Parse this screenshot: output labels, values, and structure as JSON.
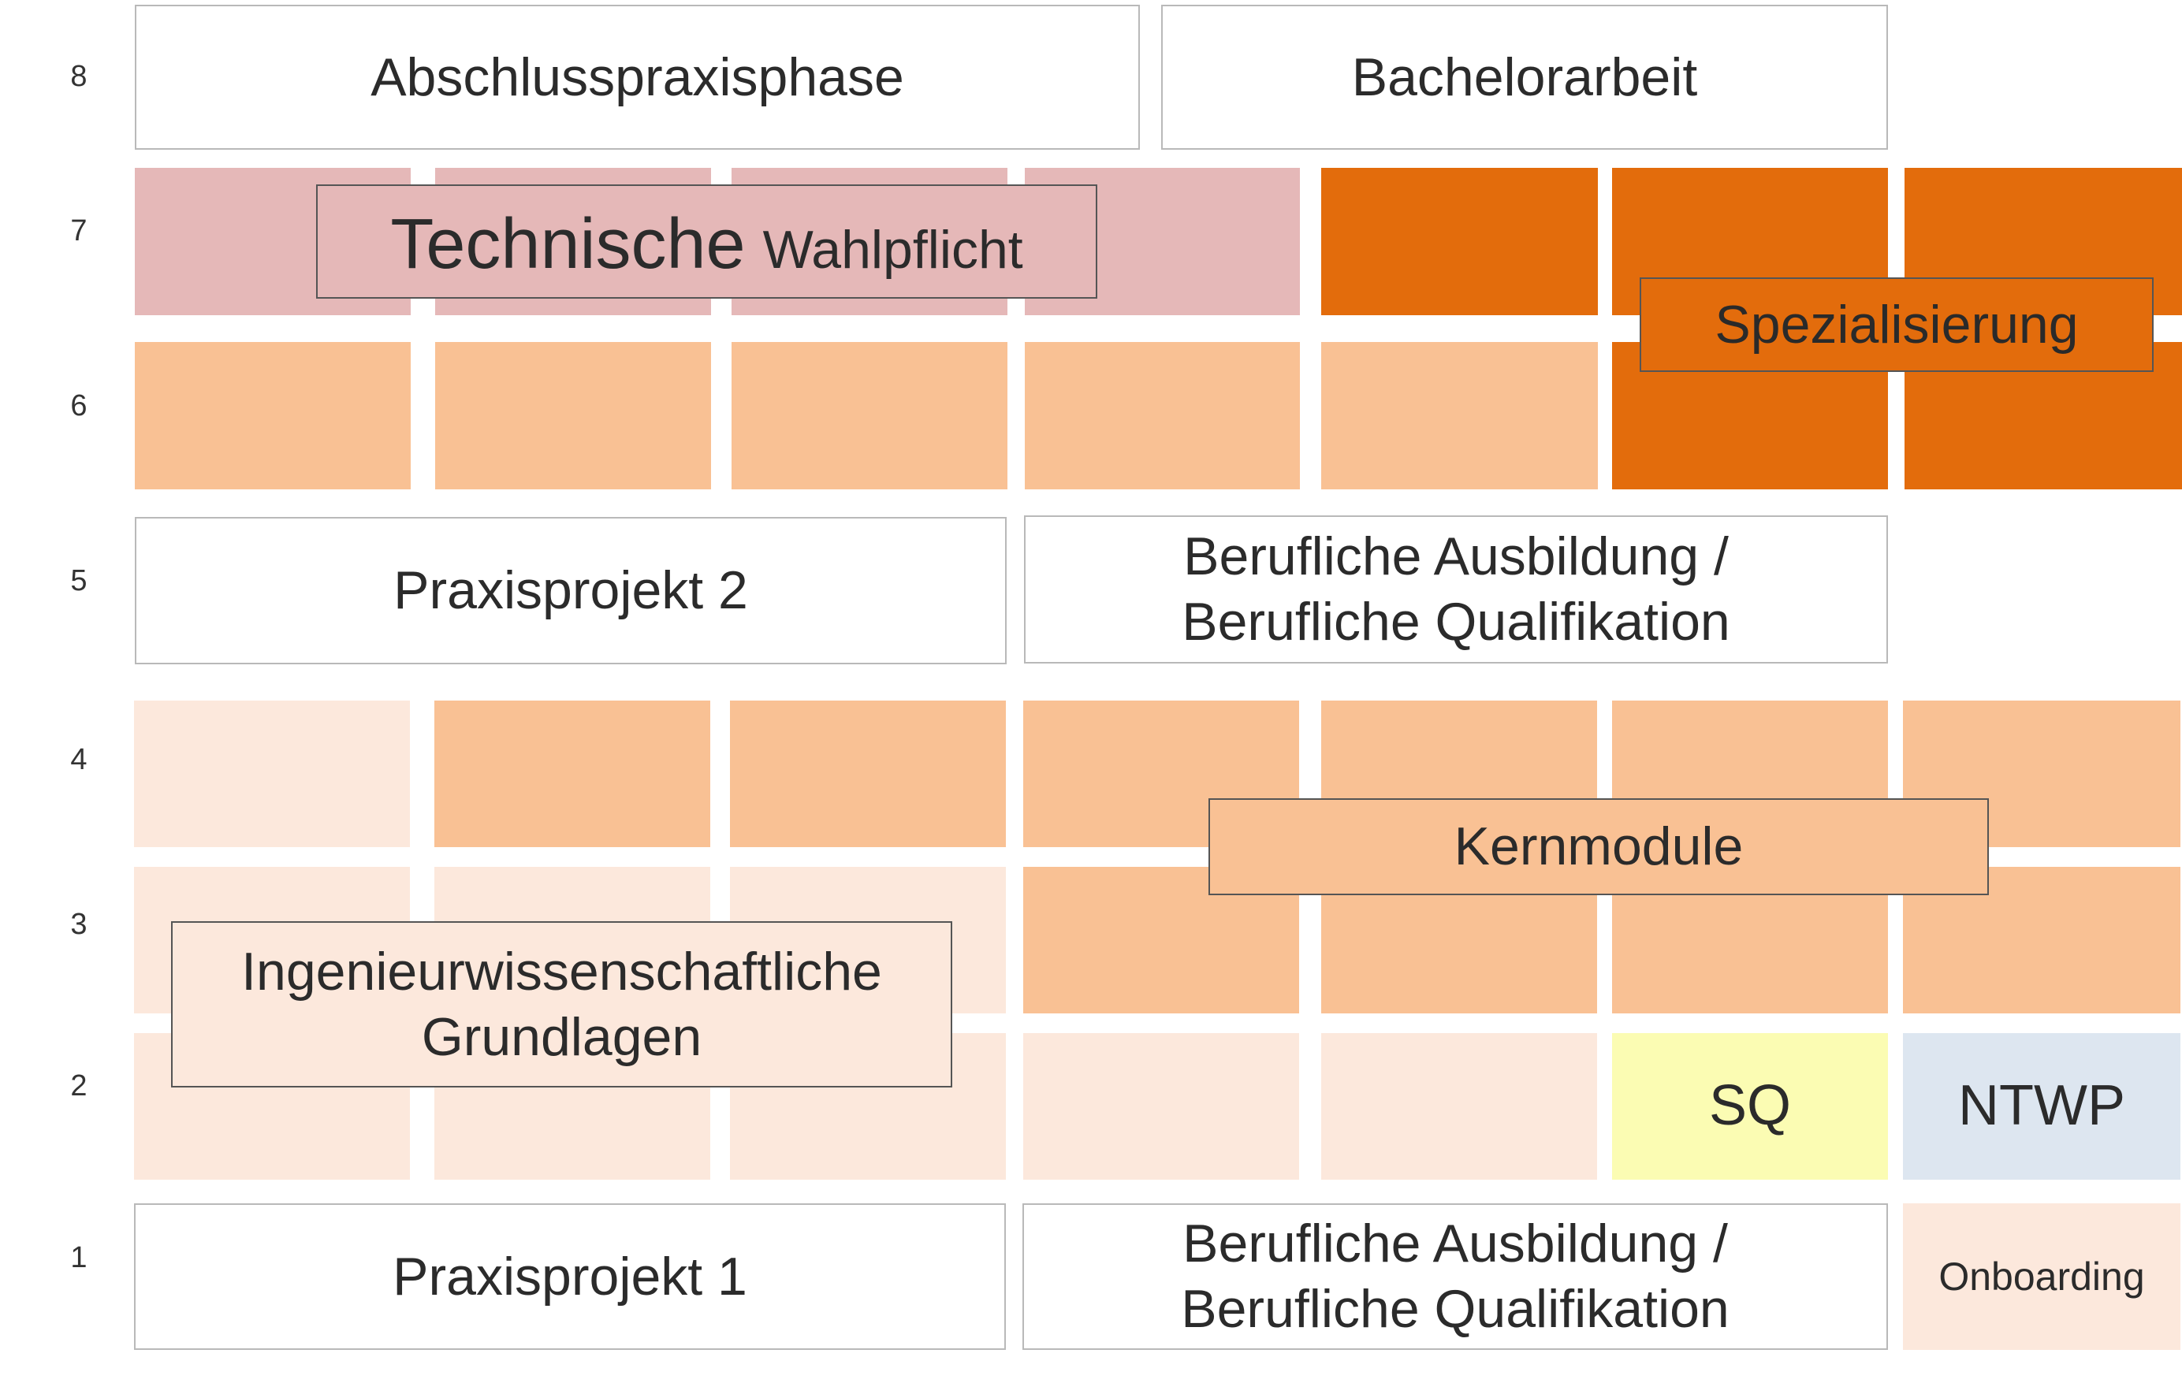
{
  "semesters": [
    "8",
    "7",
    "6",
    "5",
    "4",
    "3",
    "2",
    "1"
  ],
  "modules": {
    "abschlusspraxisphase": "Abschlusspraxisphase",
    "bachelorarbeit": "Bachelorarbeit",
    "technische_big": "Technische",
    "technische_small": "Wahlpflicht",
    "spezialisierung": "Spezialisierung",
    "praxisprojekt2": "Praxisprojekt 2",
    "berufliche5_line1": "Berufliche Ausbildung /",
    "berufliche5_line2": "Berufliche Qualifikation",
    "kernmodule": "Kernmodule",
    "ingenieur_line1": "Ingenieurwissenschaftliche",
    "ingenieur_line2": "Grundlagen",
    "sq": "SQ",
    "ntwp": "NTWP",
    "praxisprojekt1": "Praxisprojekt 1",
    "berufliche1_line1": "Berufliche Ausbildung /",
    "berufliche1_line2": "Berufliche Qualifikation",
    "onboarding": "Onboarding"
  },
  "colors": {
    "technische_wahlpflicht": "#e5b8b8",
    "kernmodule": "#f9c194",
    "ingenieur_grundlagen": "#fce8dc",
    "spezialisierung": "#e36c0c",
    "sq": "#fbfcb3",
    "ntwp": "#dde6f0"
  }
}
